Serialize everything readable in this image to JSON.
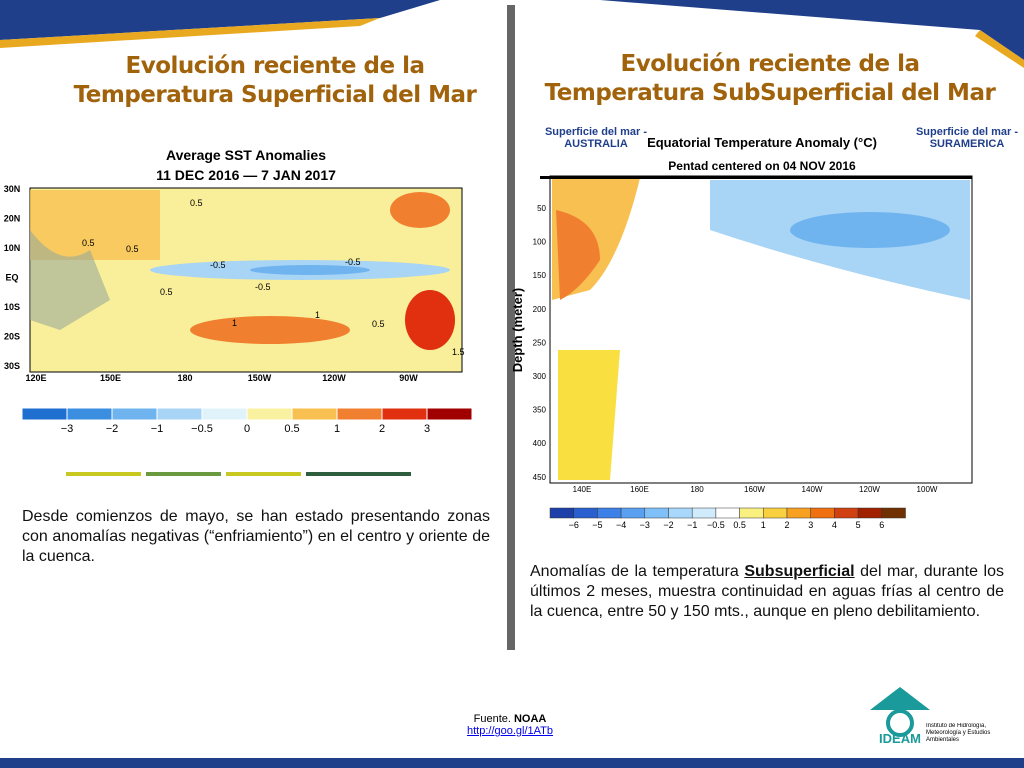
{
  "left": {
    "title_lines": [
      "Evolución reciente de la",
      "Temperatura Superficial del Mar"
    ],
    "map": {
      "title_lines": [
        "Average SST Anomalies",
        "11 DEC 2016 — 7 JAN 2017"
      ],
      "lat_labels": [
        "30N",
        "20N",
        "10N",
        "EQ",
        "10S",
        "20S",
        "30S"
      ],
      "lon_labels": [
        "120E",
        "150E",
        "180",
        "150W",
        "120W",
        "90W"
      ],
      "contour_labels": [
        "0.5",
        "0.5",
        "0.5",
        "-0.5",
        "-0.5",
        "-0.5",
        "0.5",
        "1",
        "1",
        "0.5",
        "1.5"
      ],
      "colorbar_labels": [
        "−3",
        "−2",
        "−1",
        "−0.5",
        "0",
        "0.5",
        "1",
        "2",
        "3"
      ]
    },
    "paragraph": "Desde comienzos de mayo, se han estado presentando zonas con anomalías negativas (“enfriamiento”) en el centro y oriente de la cuenca."
  },
  "right": {
    "title_lines": [
      "Evolución reciente de la",
      "Temperatura SubSuperficial del Mar"
    ],
    "note_west": "Superficie del mar - AUSTRALIA",
    "note_east": "Superficie del mar - SURAMERICA",
    "chart": {
      "title_lines": [
        "Equatorial Temperature Anomaly (°C)",
        "Pentad centered on 04 NOV 2016"
      ],
      "y_label": "Depth (meter)",
      "depth_ticks": [
        "50",
        "100",
        "150",
        "200",
        "250",
        "300",
        "350",
        "400",
        "450"
      ],
      "lon_ticks": [
        "140E",
        "160E",
        "180",
        "160W",
        "140W",
        "120W",
        "100W"
      ],
      "colorbar_labels": [
        "−6",
        "−5",
        "−4",
        "−3",
        "−2",
        "−1",
        "−0.5",
        "0.5",
        "1",
        "2",
        "3",
        "4",
        "5",
        "6"
      ]
    },
    "paragraph_parts": [
      "Anomalías de la temperatura ",
      "Subsuperficial",
      " del mar, durante los últimos 2 meses, muestra continuidad en aguas frías al centro de la cuenca, entre 50 y 150 mts., aunque en pleno debilitamiento."
    ]
  },
  "footer": {
    "source_prefix": "Fuente. ",
    "source_name": "NOAA",
    "link": "http://goo.gl/1ATb",
    "logo_name": "IDEAM",
    "logo_text": "Instituto de Hidrología, Meteorología y Estudios Ambientales"
  }
}
